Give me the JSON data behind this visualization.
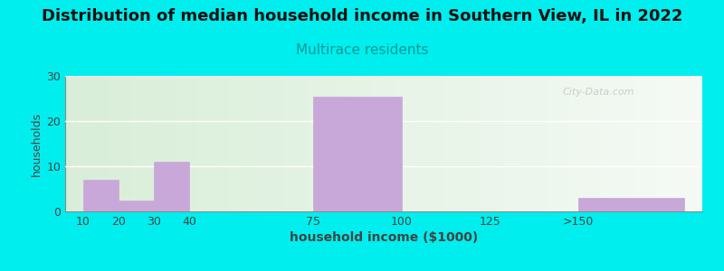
{
  "title": "Distribution of median household income in Southern View, IL in 2022",
  "subtitle": "Multirace residents",
  "xlabel": "household income ($1000)",
  "ylabel": "households",
  "background_color": "#00EEEE",
  "bar_color": "#c8a8d8",
  "bar_edge_color": "#c8a8d8",
  "tick_positions": [
    10,
    20,
    30,
    40,
    75,
    100,
    125,
    150
  ],
  "tick_labels": [
    "10",
    "20",
    "30",
    "40",
    "75",
    "100",
    "125",
    ">150"
  ],
  "bar_lefts": [
    10,
    20,
    30,
    75,
    150
  ],
  "bar_widths": [
    10,
    10,
    10,
    25,
    30
  ],
  "bar_heights": [
    7,
    2.5,
    11,
    25.5,
    3
  ],
  "ylim": [
    0,
    30
  ],
  "yticks": [
    0,
    10,
    20,
    30
  ],
  "title_fontsize": 13,
  "subtitle_fontsize": 11,
  "subtitle_color": "#009999",
  "axis_label_color": "#444444",
  "tick_color": "#444444",
  "watermark": "City-Data.com",
  "xlim": [
    5,
    185
  ]
}
